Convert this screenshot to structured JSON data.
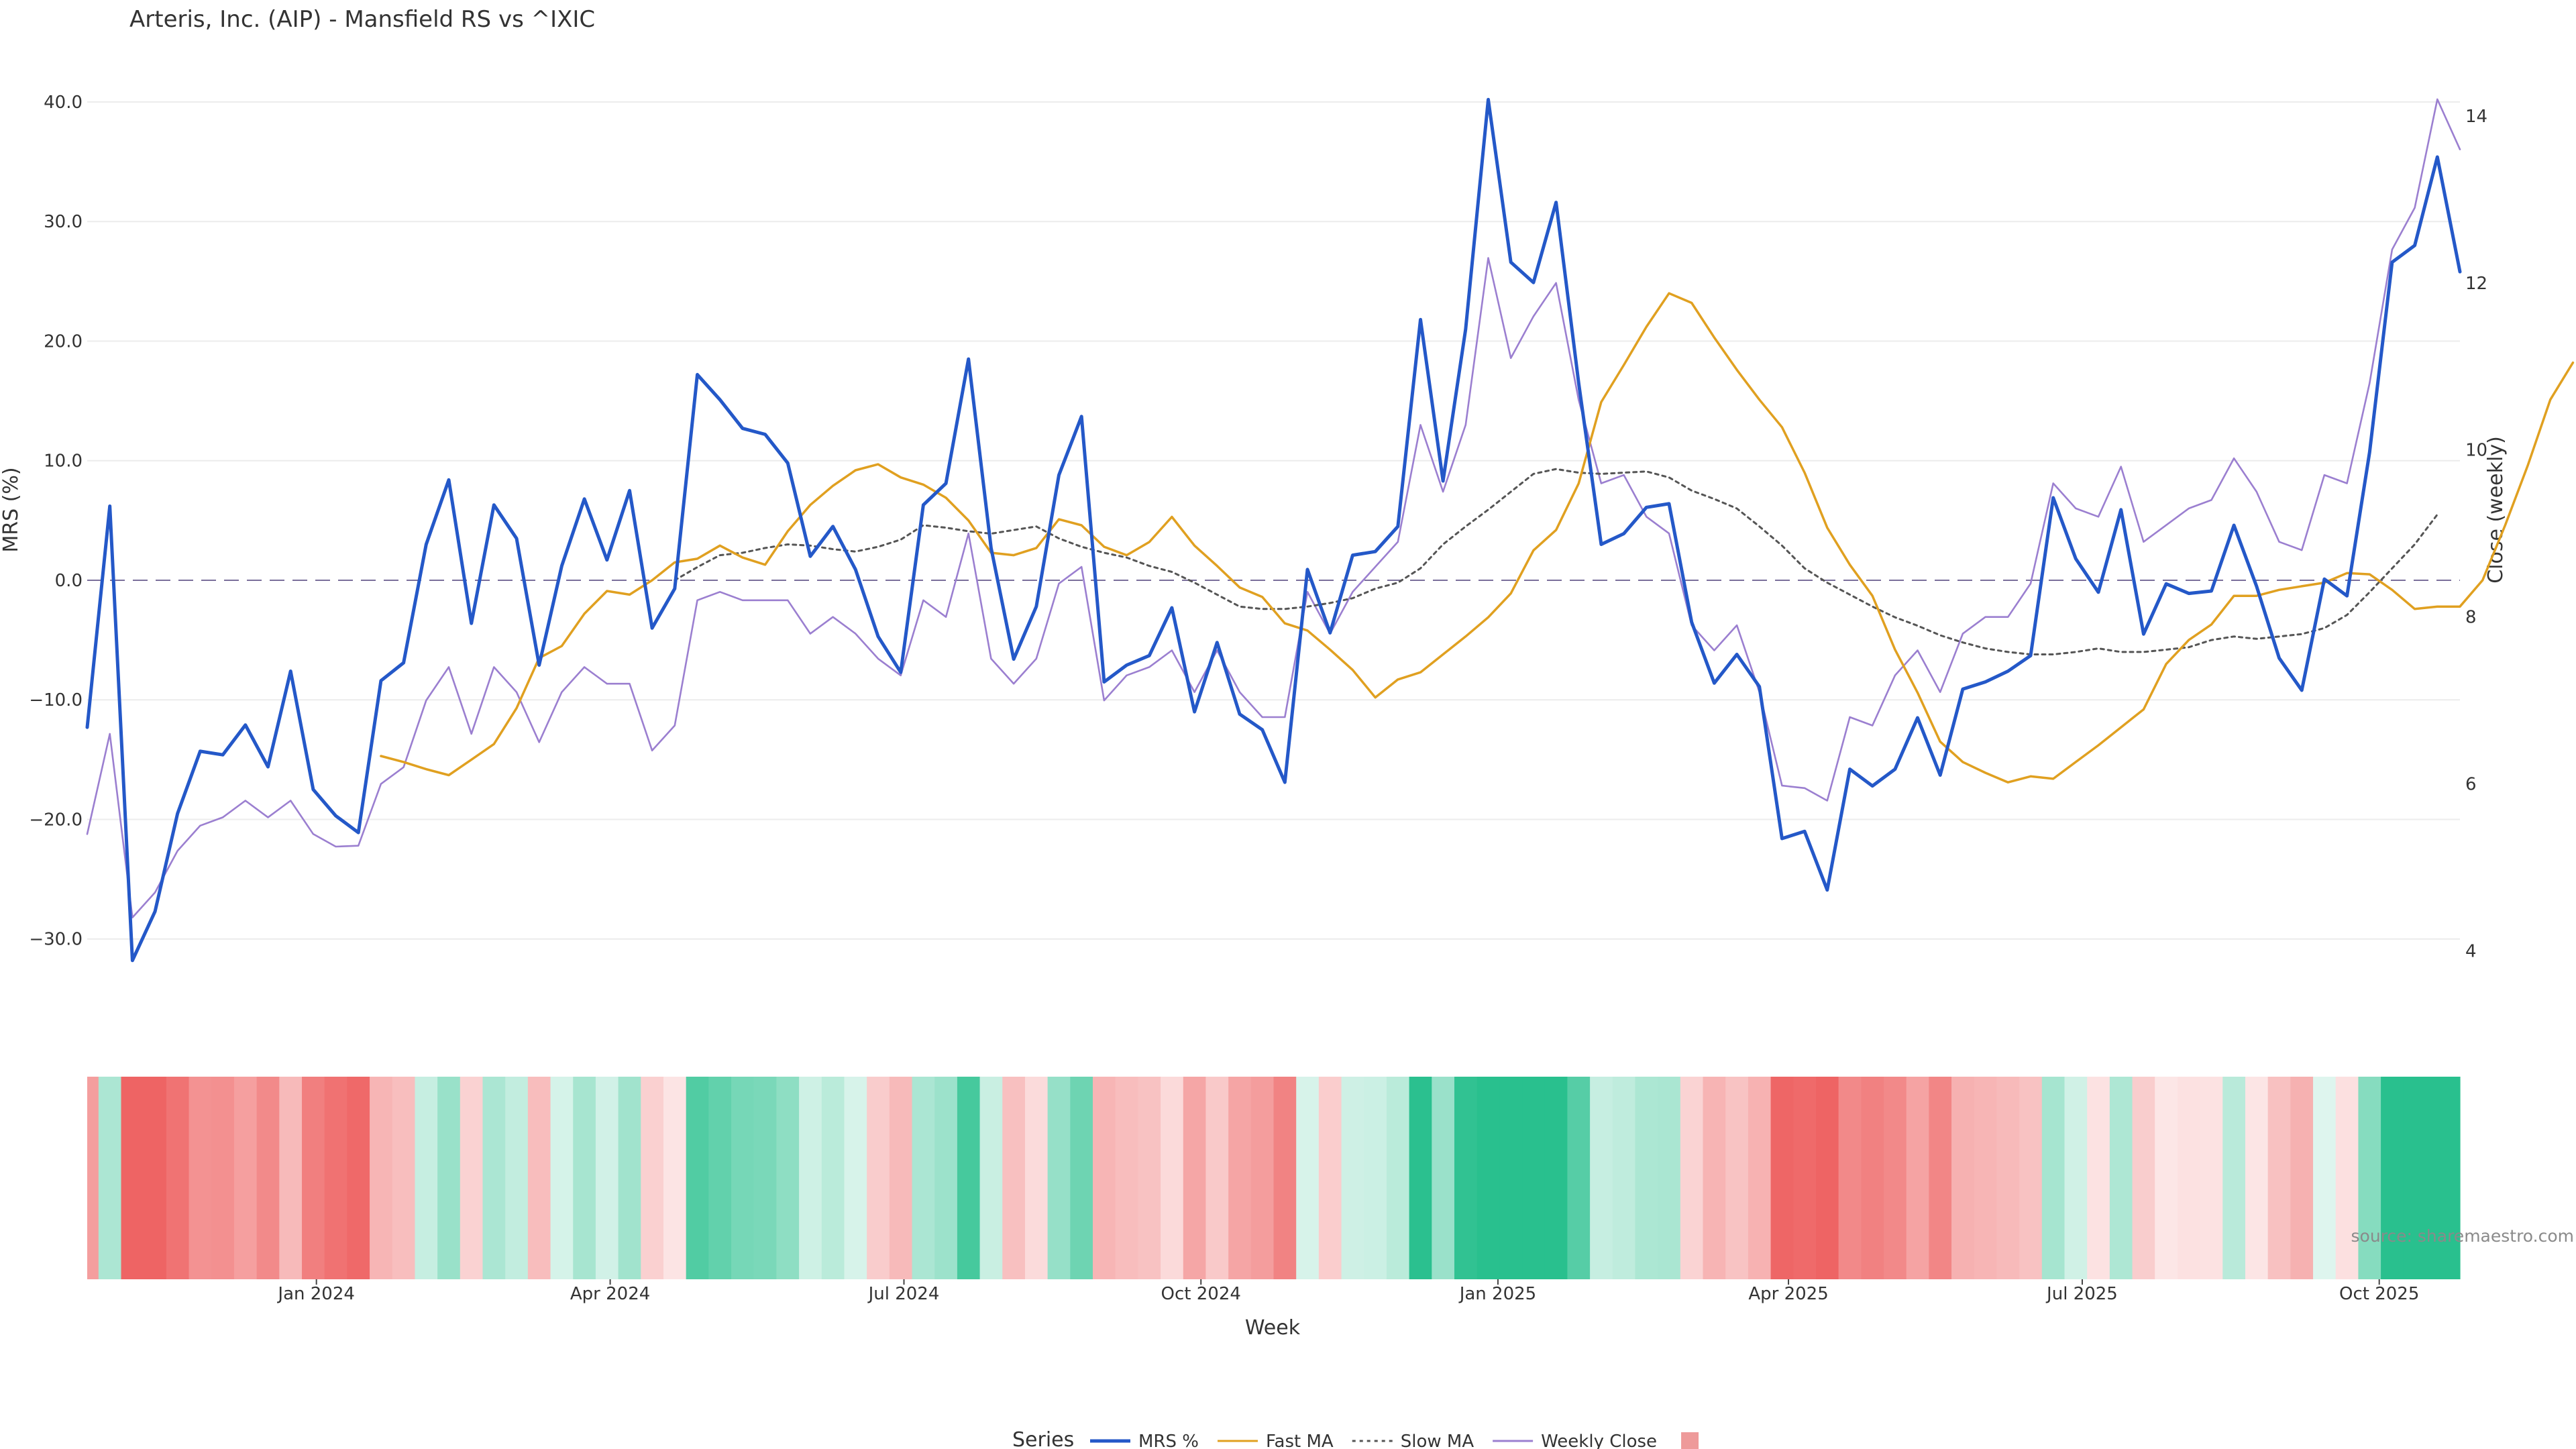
{
  "chart_data": {
    "type": "line",
    "title": "Arteris, Inc. (AIP) - Mansfield RS vs ^IXIC",
    "source": "source: sharemaestro.com",
    "xlabel": "Week",
    "ylabel_left": "MRS (%)",
    "ylabel_right": "Close (weekly)",
    "ylim_left": [
      -36.13,
      40.0
    ],
    "ylim_right": [
      3.94,
      14.2
    ],
    "yticks_left": [
      40.0,
      30.0,
      20.0,
      10.0,
      0.0,
      -10.0,
      -20.0,
      -30.0
    ],
    "ytick_labels_left": [
      "40.0",
      "30.0",
      "20.0",
      "10.0",
      "0.0",
      "−10.0",
      "−20.0",
      "−30.0"
    ],
    "yticks_right": [
      14,
      12,
      10,
      8,
      6,
      4
    ],
    "ytick_labels_right": [
      "14",
      "12",
      "10",
      "8",
      "6",
      "4"
    ],
    "x_start": "2023-10-22",
    "x_end": "2025-10-26",
    "xticks": [
      "2024-01-01",
      "2024-04-01",
      "2024-07-01",
      "2024-10-01",
      "2025-01-01",
      "2025-04-01",
      "2025-07-01",
      "2025-10-01"
    ],
    "xtick_labels": [
      "Jan 2024",
      "Apr 2024",
      "Jul 2024",
      "Oct 2024",
      "Jan 2025",
      "Apr 2025",
      "Jul 2025",
      "Oct 2025"
    ],
    "grid": true,
    "zero_line": true,
    "legend_title": "Series",
    "legend_position": "bottom-center",
    "series": [
      {
        "name": "MRS %",
        "color": "#2458c8",
        "axis": "left",
        "style": "solid",
        "x0": "2023-10-22",
        "values": [
          -12.3,
          6.2,
          -31.8,
          -27.7,
          -19.5,
          -14.3,
          -14.6,
          -12.1,
          -15.6,
          -7.6,
          -17.5,
          -19.7,
          -21.1,
          -8.4,
          -6.9,
          3.0,
          8.4,
          -3.6,
          6.3,
          3.5,
          -7.1,
          1.2,
          6.8,
          1.7,
          7.5,
          -4.0,
          -0.7,
          17.2,
          15.1,
          12.7,
          12.2,
          9.8,
          2.0,
          4.5,
          0.9,
          -4.7,
          -7.7,
          6.3,
          8.1,
          18.5,
          2.7,
          -6.6,
          -2.2,
          8.8,
          13.7,
          -8.5,
          -7.1,
          -6.3,
          -2.3,
          -11.0,
          -5.2,
          -11.2,
          -12.5,
          -16.9,
          0.9,
          -4.4,
          2.1,
          2.4,
          4.5,
          21.8,
          8.3,
          21.0,
          40.2,
          26.6,
          24.9,
          31.6,
          16.5,
          3.0,
          3.9,
          6.1,
          6.4,
          -3.5,
          -8.6,
          -6.2,
          -8.9,
          -21.6,
          -21.0,
          -25.9,
          -15.8,
          -17.2,
          -15.8,
          -11.5,
          -16.3,
          -9.1,
          -8.5,
          -7.6,
          -6.3,
          6.9,
          1.8,
          -1.0,
          5.9,
          -4.5,
          -0.3,
          -1.1,
          -0.9,
          4.6,
          -0.5,
          -6.5,
          -9.2,
          0.1,
          -1.3,
          10.7,
          26.6,
          28.0,
          35.4,
          25.8
        ]
      },
      {
        "name": "Fast MA",
        "color": "#e0a020",
        "axis": "left",
        "style": "solid",
        "x0": "2024-01-21",
        "values": [
          -14.7,
          -15.2,
          -15.8,
          -16.3,
          -15.0,
          -13.7,
          -10.7,
          -6.5,
          -5.5,
          -2.8,
          -0.9,
          -1.2,
          0.0,
          1.5,
          1.8,
          2.9,
          1.9,
          1.3,
          4.1,
          6.3,
          7.9,
          9.2,
          9.7,
          8.6,
          8.0,
          6.9,
          5.0,
          2.3,
          2.1,
          2.7,
          5.1,
          4.6,
          2.8,
          2.1,
          3.2,
          5.3,
          2.9,
          1.2,
          -0.6,
          -1.4,
          -3.6,
          -4.2,
          -5.8,
          -7.5,
          -9.8,
          -8.3,
          -7.7,
          -6.2,
          -4.7,
          -3.1,
          -1.1,
          2.5,
          4.2,
          8.1,
          14.9,
          18.0,
          21.2,
          24.0,
          23.2,
          20.3,
          17.6,
          15.1,
          12.8,
          9.0,
          4.4,
          1.3,
          -1.3,
          -5.8,
          -9.4,
          -13.5,
          -15.2,
          -16.1,
          -16.9,
          -16.4,
          -16.6,
          -15.2,
          -13.8,
          -12.3,
          -10.8,
          -7.0,
          -5.0,
          -3.7,
          -1.3,
          -1.3,
          -0.8,
          -0.5,
          -0.2,
          0.6,
          0.5,
          -0.8,
          -2.4,
          -2.2,
          -2.2,
          0.0,
          4.6,
          9.6,
          15.1,
          18.2
        ]
      },
      {
        "name": "Slow MA",
        "color": "#555555",
        "axis": "left",
        "style": "dotted",
        "x0": "2024-04-21",
        "values": [
          0.0,
          1.1,
          2.1,
          2.3,
          2.7,
          3.0,
          2.9,
          2.6,
          2.4,
          2.8,
          3.4,
          4.6,
          4.4,
          4.1,
          3.9,
          4.2,
          4.5,
          3.5,
          2.8,
          2.3,
          1.9,
          1.2,
          0.7,
          -0.2,
          -1.2,
          -2.2,
          -2.4,
          -2.4,
          -2.2,
          -1.9,
          -1.5,
          -0.7,
          -0.2,
          1.0,
          3.0,
          4.5,
          5.9,
          7.4,
          8.9,
          9.3,
          9.0,
          8.9,
          9.0,
          9.1,
          8.6,
          7.5,
          6.8,
          6.0,
          4.5,
          2.9,
          1.0,
          -0.2,
          -1.2,
          -2.2,
          -3.1,
          -3.8,
          -4.6,
          -5.2,
          -5.7,
          -6.0,
          -6.2,
          -6.2,
          -6.0,
          -5.7,
          -6.0,
          -6.0,
          -5.8,
          -5.6,
          -5.0,
          -4.7,
          -4.9,
          -4.7,
          -4.5,
          -4.0,
          -2.9,
          -1.0,
          1.0,
          3.0,
          5.5
        ]
      },
      {
        "name": "Weekly Close",
        "color": "#9b7fd0",
        "axis": "right",
        "style": "solid",
        "x0": "2023-10-22",
        "values": [
          5.4,
          6.6,
          4.4,
          4.7,
          5.2,
          5.5,
          5.6,
          5.8,
          5.6,
          5.8,
          5.4,
          5.25,
          5.26,
          6.0,
          6.2,
          7.0,
          7.4,
          6.6,
          7.4,
          7.1,
          6.5,
          7.1,
          7.4,
          7.2,
          7.2,
          6.4,
          6.7,
          8.2,
          8.3,
          8.2,
          8.2,
          8.2,
          7.8,
          8.0,
          7.8,
          7.5,
          7.3,
          8.2,
          8.0,
          9.0,
          7.5,
          7.2,
          7.5,
          8.4,
          8.6,
          7.0,
          7.3,
          7.4,
          7.6,
          7.1,
          7.6,
          7.1,
          6.8,
          6.8,
          8.3,
          7.8,
          8.3,
          8.6,
          8.9,
          10.3,
          9.5,
          10.3,
          12.3,
          11.1,
          11.6,
          12.0,
          10.6,
          9.6,
          9.7,
          9.2,
          9.0,
          7.9,
          7.6,
          7.9,
          7.1,
          5.98,
          5.95,
          5.8,
          6.8,
          6.7,
          7.3,
          7.6,
          7.1,
          7.8,
          8.0,
          8.0,
          8.4,
          9.6,
          9.3,
          9.2,
          9.8,
          8.9,
          9.1,
          9.3,
          9.4,
          9.9,
          9.5,
          8.9,
          8.8,
          9.7,
          9.6,
          10.8,
          12.4,
          12.9,
          14.2,
          13.6
        ]
      }
    ],
    "heatmap_strip": {
      "type": "heatmap",
      "x0": "2023-10-22",
      "values": [
        -12.3,
        6.2,
        -31.8,
        -27.7,
        -19.5,
        -14.3,
        -14.6,
        -12.1,
        -15.6,
        -7.6,
        -17.5,
        -19.7,
        -21.1,
        -8.4,
        -6.9,
        3.0,
        8.4,
        -3.6,
        6.3,
        3.5,
        -7.1,
        1.2,
        6.8,
        1.7,
        7.5,
        -4.0,
        -0.7,
        17.2,
        15.1,
        12.7,
        12.2,
        9.8,
        2.0,
        4.5,
        0.9,
        -4.7,
        -7.7,
        6.3,
        8.1,
        18.5,
        2.7,
        -6.6,
        -2.2,
        8.8,
        13.7,
        -8.5,
        -7.1,
        -6.3,
        -2.3,
        -11.0,
        -5.2,
        -11.2,
        -12.5,
        -16.9,
        0.9,
        -4.4,
        2.1,
        2.4,
        4.5,
        21.8,
        8.3,
        21.0,
        40.2,
        26.6,
        24.9,
        31.6,
        16.5,
        3.0,
        3.9,
        6.1,
        6.4,
        -3.5,
        -8.6,
        -6.2,
        -8.9,
        -21.6,
        -21.0,
        -25.9,
        -15.8,
        -17.2,
        -15.8,
        -11.5,
        -16.3,
        -9.1,
        -8.5,
        -7.6,
        -6.3,
        6.9,
        1.8,
        -1.0,
        5.9,
        -4.5,
        -0.3,
        -1.1,
        -0.9,
        4.6,
        -0.5,
        -6.5,
        -9.2,
        0.1,
        -1.3,
        10.7,
        26.6,
        28.0,
        35.4,
        25.8
      ],
      "positive_color": "#29c08e",
      "negative_color": "#ee6464"
    }
  }
}
